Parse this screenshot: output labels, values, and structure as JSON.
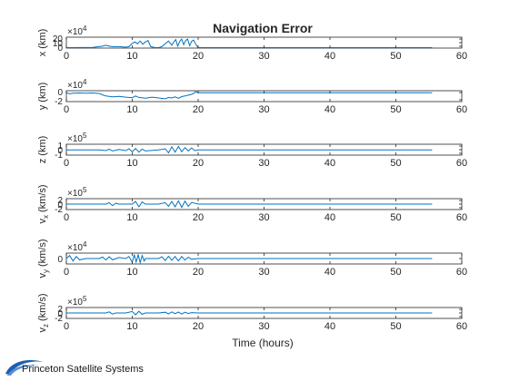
{
  "chart_data": {
    "type": "line",
    "title": "Navigation Error",
    "xlabel": "Time (hours)",
    "xlim": [
      0,
      60
    ],
    "xticks": [
      0,
      10,
      20,
      30,
      40,
      50,
      60
    ],
    "grid": false,
    "line_color": "#0072BD",
    "subplots": [
      {
        "name": "x",
        "ylabel_base": "x (km)",
        "ylabel_sub": "",
        "multiplier": "×10",
        "exponent": "4",
        "yticks": [
          "20",
          "10",
          "0"
        ],
        "ylim": [
          -1,
          22
        ],
        "baseline": 0,
        "x": [
          0,
          4,
          5.5,
          6,
          6.5,
          7,
          8,
          9,
          9.5,
          10,
          10.4,
          10.8,
          11.2,
          11.6,
          12,
          12.4,
          12.8,
          13.5,
          14,
          14.5,
          15,
          15.5,
          16,
          16.3,
          16.6,
          16.9,
          17.2,
          17.5,
          17.8,
          18.1,
          18.4,
          18.7,
          19,
          19.3,
          19.6,
          20,
          25,
          55.5
        ],
        "y": [
          0,
          0.5,
          3,
          5,
          3,
          2,
          2,
          1,
          2,
          9,
          12,
          8,
          14,
          7,
          12,
          15,
          2,
          0,
          0,
          2,
          8,
          14,
          5,
          12,
          17,
          3,
          13,
          18,
          6,
          15,
          18,
          4,
          13,
          16,
          8,
          0,
          0,
          0
        ]
      },
      {
        "name": "y",
        "ylabel_base": "y (km)",
        "ylabel_sub": "",
        "multiplier": "×10",
        "exponent": "4",
        "yticks": [
          "0",
          "-2"
        ],
        "ylim": [
          -3.2,
          0.7
        ],
        "baseline": 0,
        "x": [
          0,
          0.5,
          1,
          2,
          3,
          4,
          5,
          5.5,
          6,
          7,
          8,
          9,
          10,
          10.5,
          11,
          12,
          13,
          14,
          15,
          15.5,
          16,
          16.5,
          17,
          17.5,
          18,
          18.5,
          19,
          19.3,
          19.6,
          20,
          25,
          55.5
        ],
        "y": [
          0,
          -0.4,
          -0.2,
          -0.1,
          -0.2,
          -0.1,
          -0.3,
          -0.8,
          -1.2,
          -1.5,
          -1.3,
          -1.6,
          -1.8,
          -1.2,
          -1.7,
          -2.0,
          -1.6,
          -1.9,
          -2.2,
          -1.7,
          -1.9,
          -1.5,
          -2.0,
          -1.4,
          -1.2,
          -0.9,
          -0.6,
          -0.3,
          0.3,
          0,
          0,
          0
        ]
      },
      {
        "name": "z",
        "ylabel_base": "z (km)",
        "ylabel_sub": "",
        "multiplier": "×10",
        "exponent": "5",
        "yticks": [
          "1",
          "0",
          "-1"
        ],
        "ylim": [
          -1.4,
          1.5
        ],
        "baseline": 0,
        "x": [
          0,
          5,
          6,
          6.5,
          7,
          8,
          9,
          9.5,
          10,
          10.5,
          11,
          11.5,
          12,
          14,
          15,
          15.5,
          16,
          16.5,
          17,
          17.5,
          18,
          18.5,
          19,
          19.5,
          20,
          25,
          55.5
        ],
        "y": [
          0,
          0,
          -0.2,
          0.2,
          -0.3,
          0.1,
          -0.2,
          0.3,
          -0.5,
          0.4,
          -0.6,
          0.2,
          -0.3,
          0,
          0.3,
          -0.8,
          0.8,
          -0.6,
          0.9,
          -0.5,
          0.6,
          -0.3,
          0.5,
          -0.2,
          0,
          0,
          0
        ]
      },
      {
        "name": "vx",
        "ylabel_base": "v",
        "ylabel_sub": "x",
        "ylabel_unit": " (km/s)",
        "multiplier": "×10",
        "exponent": "5",
        "yticks": [
          "2",
          "0",
          "-2"
        ],
        "ylim": [
          -3,
          3
        ],
        "baseline": 0,
        "x": [
          0,
          6,
          6.5,
          7,
          7.5,
          8,
          10,
          10.5,
          11,
          11.5,
          12,
          14,
          15,
          15.5,
          16,
          16.5,
          17,
          17.5,
          18,
          18.5,
          19,
          20,
          25,
          55.5
        ],
        "y": [
          0,
          0,
          0.8,
          -0.8,
          0.5,
          0,
          0,
          1.5,
          -1.5,
          1.2,
          0,
          0,
          0.8,
          -1.2,
          1.5,
          -1.5,
          1.8,
          -1.8,
          1.6,
          -1.2,
          0.9,
          0,
          0,
          0
        ]
      },
      {
        "name": "vy",
        "ylabel_base": "v",
        "ylabel_sub": "y",
        "ylabel_unit": " (km/s)",
        "multiplier": "×10",
        "exponent": "4",
        "yticks": [
          "0"
        ],
        "ylim": [
          -2.2,
          2.2
        ],
        "baseline": 0,
        "x": [
          0,
          0.5,
          1,
          1.5,
          2,
          3,
          5,
          5.5,
          6,
          6.5,
          7,
          8,
          9,
          9.5,
          10,
          10.3,
          10.6,
          10.9,
          11.2,
          11.5,
          11.8,
          12,
          14,
          14.5,
          15,
          15.5,
          16,
          16.5,
          17,
          17.5,
          18,
          18.5,
          19,
          20,
          25,
          55.5
        ],
        "y": [
          0,
          1.2,
          -1,
          0.8,
          -0.5,
          0,
          0,
          0.6,
          -0.6,
          0.7,
          -0.5,
          0.4,
          0,
          0.8,
          -1.5,
          1.6,
          -1.4,
          1.5,
          -1.6,
          1.2,
          -1.0,
          0,
          0,
          0.7,
          -0.8,
          0.9,
          -0.7,
          0.8,
          -0.9,
          0.8,
          -0.6,
          0.5,
          -0.3,
          0,
          0,
          0
        ]
      },
      {
        "name": "vz",
        "ylabel_base": "v",
        "ylabel_sub": "z",
        "ylabel_unit": " (km/s)",
        "multiplier": "×10",
        "exponent": "5",
        "yticks": [
          "2",
          "0",
          "-2"
        ],
        "ylim": [
          -3,
          3
        ],
        "baseline": 0,
        "x": [
          0,
          6,
          6.5,
          7,
          7.5,
          9,
          10,
          10.5,
          11,
          11.5,
          12,
          14,
          15,
          15.5,
          16,
          16.5,
          17,
          17.5,
          18,
          18.5,
          19,
          20,
          25,
          55.5
        ],
        "y": [
          0,
          0,
          0.6,
          -0.6,
          0,
          0,
          0.8,
          -1,
          0.9,
          -0.7,
          0,
          0,
          0.4,
          -0.5,
          0.6,
          -0.4,
          0.5,
          -0.6,
          0.4,
          -0.3,
          0.2,
          0,
          0,
          0
        ]
      }
    ]
  },
  "footer": {
    "org": "Princeton Satellite Systems"
  }
}
